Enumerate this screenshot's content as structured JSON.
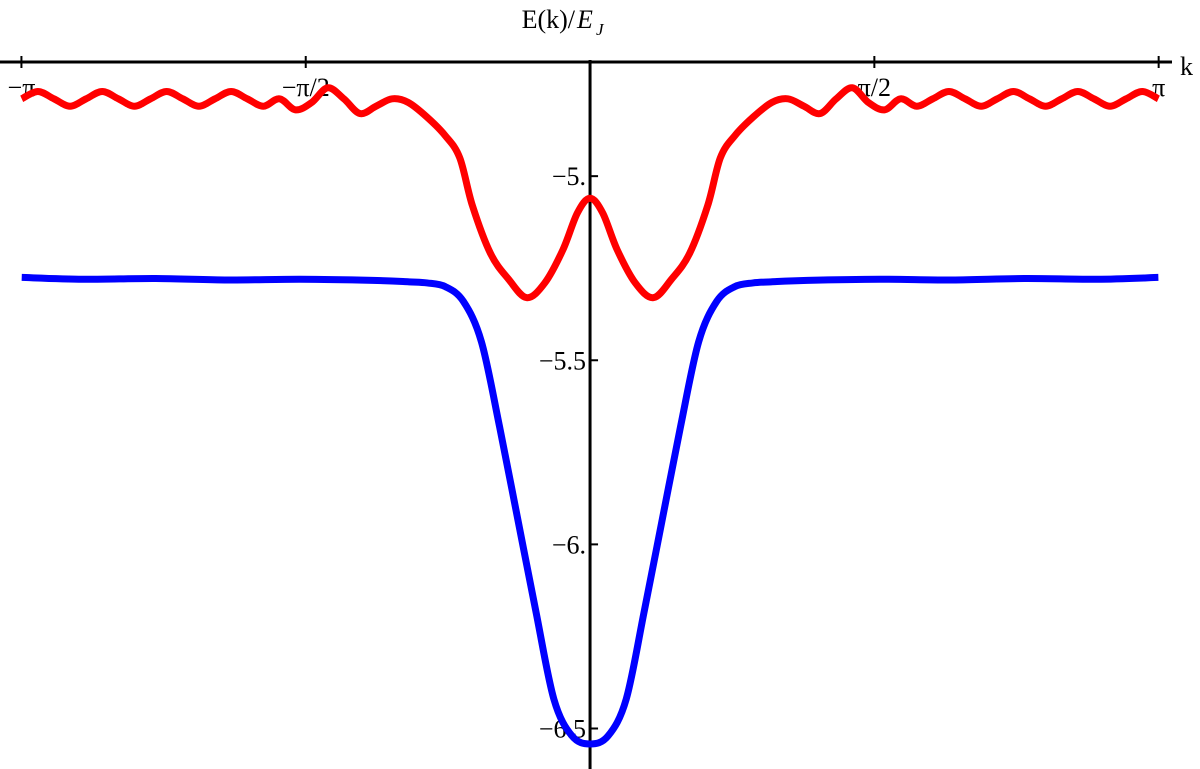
{
  "chart_data": {
    "type": "line",
    "xlabel": "k",
    "ylabel": {
      "text": "E(k)/",
      "symbol": "E",
      "subscript": "J"
    },
    "xlim": [
      -3.26,
      3.37
    ],
    "ylim": [
      -6.61,
      -4.69
    ],
    "xticks": [
      {
        "value": -3.14159,
        "label": "−π"
      },
      {
        "value": -1.5708,
        "label": "−π/2"
      },
      {
        "value": 1.5708,
        "label": "π/2"
      },
      {
        "value": 3.14159,
        "label": "π"
      }
    ],
    "yticks": [
      {
        "value": -5,
        "label": "−5."
      },
      {
        "value": -5.5,
        "label": "−5.5"
      },
      {
        "value": -6,
        "label": "−6."
      },
      {
        "value": -6.5,
        "label": "−6.5"
      }
    ],
    "series": [
      {
        "color": "#ff0000",
        "x": [
          -3.14,
          -3.051,
          -2.962,
          -2.873,
          -2.784,
          -2.695,
          -2.606,
          -2.517,
          -2.428,
          -2.339,
          -2.25,
          -2.161,
          -2.072,
          -1.983,
          -1.894,
          -1.805,
          -1.716,
          -1.627,
          -1.538,
          -1.449,
          -1.36,
          -1.271,
          -1.182,
          -1.093,
          -1.004,
          -0.9,
          -0.8,
          -0.72,
          -0.65,
          -0.55,
          -0.45,
          -0.35,
          -0.25,
          -0.15,
          -0.07,
          0,
          0.07,
          0.15,
          0.25,
          0.35,
          0.45,
          0.55,
          0.65,
          0.72,
          0.8,
          0.9,
          1.004,
          1.093,
          1.182,
          1.271,
          1.36,
          1.449,
          1.538,
          1.627,
          1.716,
          1.805,
          1.894,
          1.983,
          2.072,
          2.161,
          2.25,
          2.339,
          2.428,
          2.517,
          2.606,
          2.695,
          2.784,
          2.873,
          2.962,
          3.051,
          3.14
        ],
        "values": [
          -4.79,
          -4.77,
          -4.79,
          -4.81,
          -4.79,
          -4.77,
          -4.79,
          -4.81,
          -4.79,
          -4.77,
          -4.79,
          -4.81,
          -4.79,
          -4.77,
          -4.79,
          -4.81,
          -4.79,
          -4.82,
          -4.8,
          -4.76,
          -4.79,
          -4.83,
          -4.81,
          -4.79,
          -4.8,
          -4.84,
          -4.89,
          -4.95,
          -5.08,
          -5.21,
          -5.28,
          -5.33,
          -5.29,
          -5.2,
          -5.1,
          -5.06,
          -5.1,
          -5.2,
          -5.29,
          -5.33,
          -5.28,
          -5.21,
          -5.08,
          -4.95,
          -4.89,
          -4.84,
          -4.8,
          -4.79,
          -4.81,
          -4.83,
          -4.79,
          -4.76,
          -4.8,
          -4.82,
          -4.79,
          -4.81,
          -4.79,
          -4.77,
          -4.79,
          -4.81,
          -4.79,
          -4.77,
          -4.79,
          -4.81,
          -4.79,
          -4.77,
          -4.79,
          -4.81,
          -4.79,
          -4.77,
          -4.79
        ]
      },
      {
        "color": "#0000ff",
        "x": [
          -3.14,
          -2.8,
          -2.4,
          -2,
          -1.6,
          -1.2,
          -1,
          -0.9,
          -0.8,
          -0.7,
          -0.6,
          -0.5,
          -0.4,
          -0.3,
          -0.2,
          -0.1,
          0,
          0.1,
          0.2,
          0.3,
          0.4,
          0.5,
          0.6,
          0.7,
          0.8,
          0.9,
          1,
          1.2,
          1.6,
          2,
          2.4,
          2.8,
          3.14
        ],
        "values": [
          -5.275,
          -5.28,
          -5.278,
          -5.282,
          -5.28,
          -5.283,
          -5.287,
          -5.29,
          -5.3,
          -5.34,
          -5.45,
          -5.68,
          -5.93,
          -6.18,
          -6.42,
          -6.52,
          -6.542,
          -6.52,
          -6.42,
          -6.18,
          -5.93,
          -5.68,
          -5.45,
          -5.34,
          -5.3,
          -5.29,
          -5.287,
          -5.283,
          -5.28,
          -5.282,
          -5.278,
          -5.28,
          -5.275
        ]
      }
    ]
  }
}
